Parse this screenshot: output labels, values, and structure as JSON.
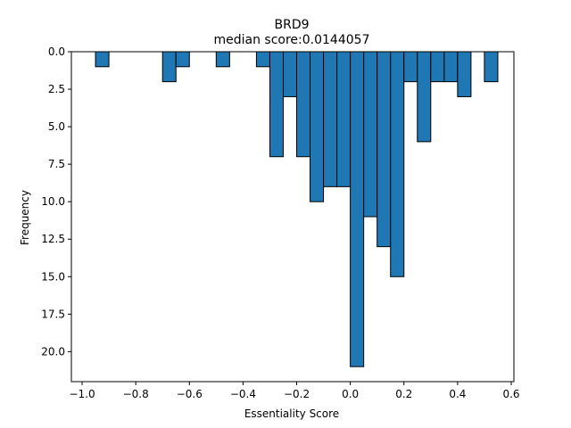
{
  "chart_data": {
    "type": "bar",
    "title": "BRD9",
    "subtitle": "median score:0.0144057",
    "xlabel": "Essentiality Score",
    "ylabel": "Frequency",
    "xlim": [
      -1.04,
      0.61
    ],
    "ylim": [
      22,
      0
    ],
    "y_inverted": true,
    "grid": false,
    "bar_color": "#1f77b4",
    "edge_color": "#000000",
    "x_ticks": [
      -1.0,
      -0.8,
      -0.6,
      -0.4,
      -0.2,
      0.0,
      0.2,
      0.4,
      0.6
    ],
    "x_tick_labels": [
      "−1.0",
      "−0.8",
      "−0.6",
      "−0.4",
      "−0.2",
      "0.0",
      "0.2",
      "0.4",
      "0.6"
    ],
    "y_ticks": [
      0.0,
      2.5,
      5.0,
      7.5,
      10.0,
      12.5,
      15.0,
      17.5,
      20.0
    ],
    "y_tick_labels": [
      "0.0",
      "2.5",
      "5.0",
      "7.5",
      "10.0",
      "12.5",
      "15.0",
      "17.5",
      "20.0"
    ],
    "bins": [
      {
        "x0": -0.95,
        "x1": -0.9,
        "count": 1
      },
      {
        "x0": -0.7,
        "x1": -0.65,
        "count": 2
      },
      {
        "x0": -0.65,
        "x1": -0.6,
        "count": 1
      },
      {
        "x0": -0.5,
        "x1": -0.45,
        "count": 1
      },
      {
        "x0": -0.35,
        "x1": -0.3,
        "count": 1
      },
      {
        "x0": -0.3,
        "x1": -0.25,
        "count": 7
      },
      {
        "x0": -0.25,
        "x1": -0.2,
        "count": 3
      },
      {
        "x0": -0.2,
        "x1": -0.15,
        "count": 7
      },
      {
        "x0": -0.15,
        "x1": -0.1,
        "count": 10
      },
      {
        "x0": -0.1,
        "x1": -0.05,
        "count": 9
      },
      {
        "x0": -0.05,
        "x1": 0.0,
        "count": 9
      },
      {
        "x0": 0.0,
        "x1": 0.05,
        "count": 21
      },
      {
        "x0": 0.05,
        "x1": 0.1,
        "count": 11
      },
      {
        "x0": 0.1,
        "x1": 0.15,
        "count": 13
      },
      {
        "x0": 0.15,
        "x1": 0.2,
        "count": 15
      },
      {
        "x0": 0.2,
        "x1": 0.25,
        "count": 2
      },
      {
        "x0": 0.25,
        "x1": 0.3,
        "count": 6
      },
      {
        "x0": 0.3,
        "x1": 0.35,
        "count": 2
      },
      {
        "x0": 0.35,
        "x1": 0.4,
        "count": 2
      },
      {
        "x0": 0.4,
        "x1": 0.45,
        "count": 3
      },
      {
        "x0": 0.5,
        "x1": 0.55,
        "count": 2
      }
    ]
  }
}
